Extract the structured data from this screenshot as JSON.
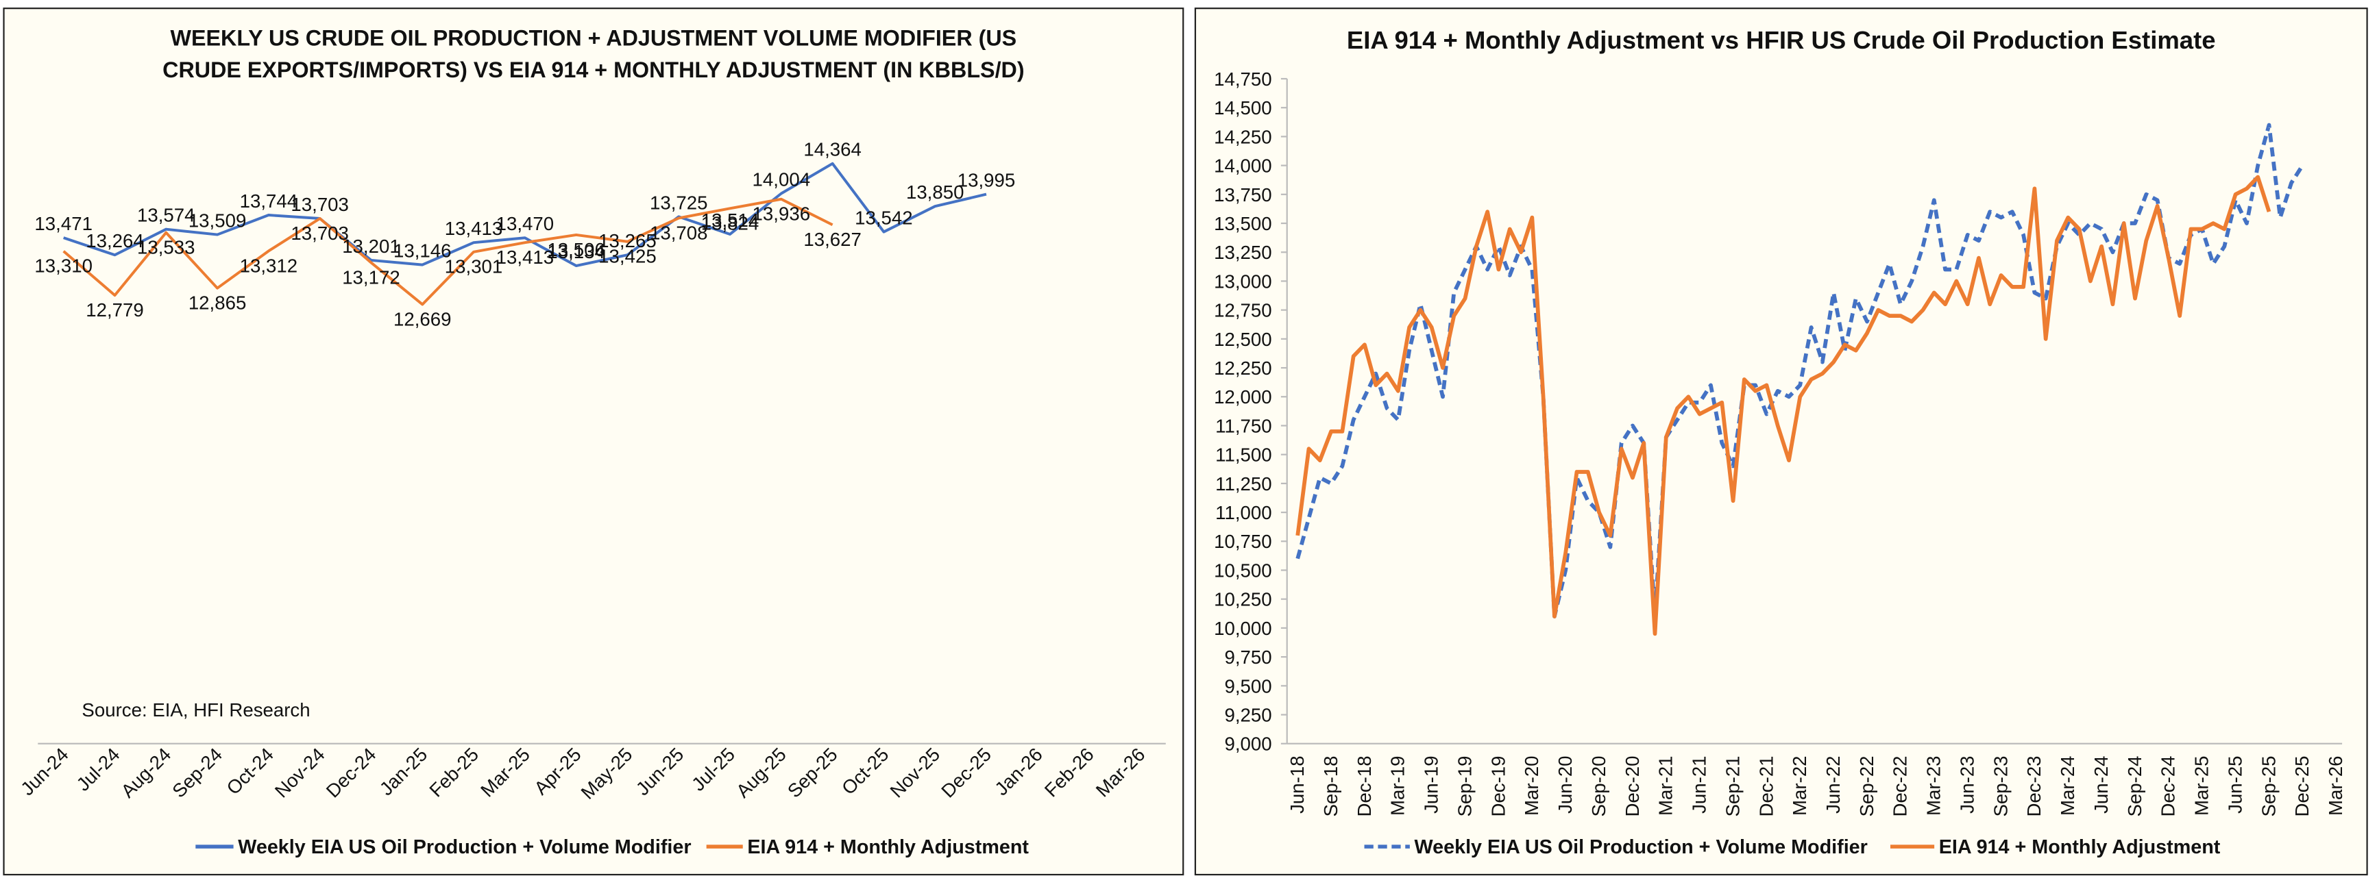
{
  "chart_data": [
    {
      "type": "line",
      "title": "WEEKLY US CRUDE OIL PRODUCTION + ADJUSTMENT VOLUME MODIFIER (US CRUDE EXPORTS/IMPORTS) VS EIA 914 + MONTHLY ADJUSTMENT (IN KBBLS/D)",
      "annotation": "Source: EIA, HFI Research",
      "legend": "bottom",
      "grid": false,
      "categories": [
        "Jun-24",
        "Jul-24",
        "Aug-24",
        "Sep-24",
        "Oct-24",
        "Nov-24",
        "Dec-24",
        "Jan-25",
        "Feb-25",
        "Mar-25",
        "Apr-25",
        "May-25",
        "Jun-25",
        "Jul-25",
        "Aug-25",
        "Sep-25",
        "Oct-25",
        "Nov-25",
        "Dec-25",
        "Jan-26",
        "Feb-26",
        "Mar-26"
      ],
      "series": [
        {
          "name": "Weekly EIA US Oil Production + Volume Modifier",
          "color": "#4472c4",
          "values": [
            13471,
            13264,
            13574,
            13509,
            13744,
            13703,
            13201,
            13146,
            13413,
            13470,
            13134,
            13265,
            13725,
            13514,
            14004,
            14364,
            13542,
            13850,
            13995,
            null,
            null,
            null
          ],
          "value_labels": [
            "13,471",
            "13,264",
            "13,574",
            "13,509",
            "13,744",
            "13,703",
            "13,201",
            "13,146",
            "13,413",
            "13,470",
            "13,134",
            "13,265",
            "13,725",
            "13,514",
            "14,004",
            "14,364",
            "13,542",
            "13,850",
            "13,995",
            null,
            null,
            null
          ]
        },
        {
          "name": "EIA 914 + Monthly Adjustment",
          "color": "#ed7d31",
          "values": [
            13310,
            12779,
            13533,
            12865,
            13312,
            13703,
            13172,
            12669,
            13301,
            13413,
            13506,
            13425,
            13708,
            13824,
            13936,
            13627,
            null,
            null,
            null,
            null,
            null,
            null
          ],
          "value_labels": [
            "13,310",
            "12,779",
            "13,533",
            "12,865",
            "13,312",
            "13,703",
            "13,172",
            "12,669",
            "13,301",
            "13,413",
            "13,506",
            "13,425",
            "13,708",
            "13,824",
            "13,936",
            "13,627",
            null,
            null,
            null,
            null,
            null,
            null
          ]
        }
      ]
    },
    {
      "type": "line",
      "title": "EIA 914 + Monthly Adjustment vs HFIR US Crude Oil Production Estimate",
      "legend": "bottom",
      "grid": false,
      "categories": [
        "Jun-18",
        null,
        null,
        "Sep-18",
        null,
        null,
        "Dec-18",
        null,
        null,
        "Mar-19",
        null,
        null,
        "Jun-19",
        null,
        null,
        "Sep-19",
        null,
        null,
        "Dec-19",
        null,
        null,
        "Mar-20",
        null,
        null,
        "Jun-20",
        null,
        null,
        "Sep-20",
        null,
        null,
        "Dec-20",
        null,
        null,
        "Mar-21",
        null,
        null,
        "Jun-21",
        null,
        null,
        "Sep-21",
        null,
        null,
        "Dec-21",
        null,
        null,
        "Mar-22",
        null,
        null,
        "Jun-22",
        null,
        null,
        "Sep-22",
        null,
        null,
        "Dec-22",
        null,
        null,
        "Mar-23",
        null,
        null,
        "Jun-23",
        null,
        null,
        "Sep-23",
        null,
        null,
        "Dec-23",
        null,
        null,
        "Mar-24",
        null,
        null,
        "Jun-24",
        null,
        null,
        "Sep-24",
        null,
        null,
        "Dec-24",
        null,
        null,
        "Mar-25",
        null,
        null,
        "Jun-25",
        null,
        null,
        "Sep-25",
        null,
        null,
        "Dec-25",
        null,
        null,
        "Mar-26"
      ],
      "ylim": [
        9000,
        14750
      ],
      "yticks": [
        {
          "value": 9000,
          "label": "9,000"
        },
        {
          "value": 9250,
          "label": "9,250"
        },
        {
          "value": 9500,
          "label": "9,500"
        },
        {
          "value": 9750,
          "label": "9,750"
        },
        {
          "value": 10000,
          "label": "10,000"
        },
        {
          "value": 10250,
          "label": "10,250"
        },
        {
          "value": 10500,
          "label": "10,500"
        },
        {
          "value": 10750,
          "label": "10,750"
        },
        {
          "value": 11000,
          "label": "11,000"
        },
        {
          "value": 11250,
          "label": "11,250"
        },
        {
          "value": 11500,
          "label": "11,500"
        },
        {
          "value": 11750,
          "label": "11,750"
        },
        {
          "value": 12000,
          "label": "12,000"
        },
        {
          "value": 12250,
          "label": "12,250"
        },
        {
          "value": 12500,
          "label": "12,500"
        },
        {
          "value": 12750,
          "label": "12,750"
        },
        {
          "value": 13000,
          "label": "13,000"
        },
        {
          "value": 13250,
          "label": "13,250"
        },
        {
          "value": 13500,
          "label": "13,500"
        },
        {
          "value": 13750,
          "label": "13,750"
        },
        {
          "value": 14000,
          "label": "14,000"
        },
        {
          "value": 14250,
          "label": "14,250"
        },
        {
          "value": 14500,
          "label": "14,500"
        },
        {
          "value": 14750,
          "label": "14,750"
        }
      ],
      "series": [
        {
          "name": "Weekly EIA US Oil Production + Volume Modifier",
          "color": "#4472c4",
          "line_style": "dashed",
          "values": [
            10600,
            10950,
            11300,
            11250,
            11400,
            11800,
            12000,
            12200,
            11900,
            11800,
            12400,
            12800,
            12400,
            12000,
            12900,
            13100,
            13300,
            13100,
            13300,
            13050,
            13300,
            13100,
            12000,
            10100,
            10500,
            11300,
            11100,
            11000,
            10700,
            11600,
            11750,
            11600,
            10100,
            11650,
            11800,
            11950,
            11950,
            12100,
            11600,
            11400,
            12100,
            12100,
            11850,
            12050,
            12000,
            12100,
            12600,
            12300,
            12900,
            12400,
            12850,
            12650,
            12900,
            13150,
            12800,
            13000,
            13300,
            13700,
            13100,
            13100,
            13400,
            13350,
            13600,
            13550,
            13600,
            13400,
            12900,
            12850,
            13300,
            13500,
            13400,
            13500,
            13450,
            13250,
            13500,
            13500,
            13750,
            13700,
            13200,
            13150,
            13400,
            13450,
            13150,
            13300,
            13700,
            13500,
            14000,
            14350,
            13550,
            13850,
            14000,
            null,
            null,
            null
          ]
        },
        {
          "name": "EIA 914 + Monthly Adjustment",
          "color": "#ed7d31",
          "line_style": "solid",
          "values": [
            10800,
            11550,
            11450,
            11700,
            11700,
            12350,
            12450,
            12100,
            12200,
            12050,
            12600,
            12750,
            12600,
            12250,
            12700,
            12850,
            13300,
            13600,
            13100,
            13450,
            13250,
            13550,
            12000,
            10100,
            10650,
            11350,
            11350,
            11000,
            10800,
            11550,
            11300,
            11600,
            9950,
            11650,
            11900,
            12000,
            11850,
            11900,
            11950,
            11100,
            12150,
            12050,
            12100,
            11750,
            11450,
            12000,
            12150,
            12200,
            12300,
            12450,
            12400,
            12550,
            12750,
            12700,
            12700,
            12650,
            12750,
            12900,
            12800,
            13000,
            12800,
            13200,
            12800,
            13050,
            12950,
            12950,
            13800,
            12500,
            13350,
            13550,
            13450,
            13000,
            13300,
            12800,
            13500,
            12850,
            13350,
            13650,
            13200,
            12700,
            13450,
            13450,
            13500,
            13450,
            13750,
            13800,
            13900,
            13600,
            null,
            null,
            null,
            null,
            null,
            null
          ]
        }
      ]
    }
  ]
}
